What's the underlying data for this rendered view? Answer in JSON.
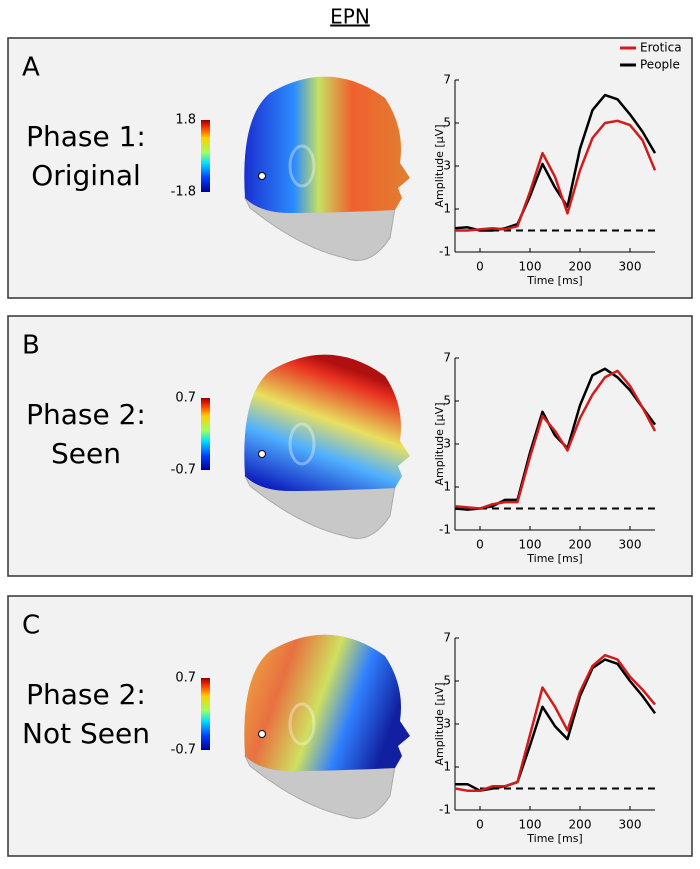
{
  "title": "EPN",
  "panels": [
    {
      "letter": "A",
      "label": [
        "Phase 1:",
        "Original"
      ],
      "colorbar": {
        "max": 1.8,
        "min": -1.8
      }
    },
    {
      "letter": "B",
      "label": [
        "Phase 2:",
        "Seen"
      ],
      "colorbar": {
        "max": 0.7,
        "min": -0.7
      }
    },
    {
      "letter": "C",
      "label": [
        "Phase 2:",
        "Not Seen"
      ],
      "colorbar": {
        "max": 0.7,
        "min": -0.7
      }
    }
  ],
  "chart_data": [
    {
      "type": "line",
      "xlabel": "Time [ms]",
      "ylabel": "Amplitude [µV]",
      "legend": "upper right",
      "x": [
        -50,
        -25,
        0,
        25,
        50,
        75,
        100,
        125,
        150,
        175,
        200,
        225,
        250,
        275,
        300,
        325,
        350
      ],
      "xlim": [
        -50,
        350
      ],
      "xticks": [
        0,
        100,
        200,
        300
      ],
      "ylim": [
        -1,
        7
      ],
      "yticks": [
        -1,
        1,
        3,
        5,
        7
      ],
      "hline": 0,
      "series": [
        {
          "name": "Erotica",
          "color": "#d01c1c",
          "values": [
            0,
            0,
            0.05,
            0.1,
            0.05,
            0.2,
            1.8,
            3.6,
            2.5,
            0.8,
            2.8,
            4.3,
            5.0,
            5.1,
            4.9,
            4.2,
            2.8
          ]
        },
        {
          "name": "People",
          "color": "#000000",
          "values": [
            0.1,
            0.15,
            0,
            0,
            0.1,
            0.3,
            1.6,
            3.1,
            2.0,
            1.1,
            3.8,
            5.6,
            6.3,
            6.1,
            5.4,
            4.6,
            3.6
          ]
        }
      ]
    },
    {
      "type": "line",
      "xlabel": "Time [ms]",
      "ylabel": "Amplitude [µV]",
      "x": [
        -50,
        -25,
        0,
        25,
        50,
        75,
        100,
        125,
        150,
        175,
        200,
        225,
        250,
        275,
        300,
        325,
        350
      ],
      "xlim": [
        -50,
        350
      ],
      "xticks": [
        0,
        100,
        200,
        300
      ],
      "ylim": [
        -1,
        7
      ],
      "yticks": [
        -1,
        1,
        3,
        5,
        7
      ],
      "hline": 0,
      "series": [
        {
          "name": "Erotica",
          "color": "#d01c1c",
          "values": [
            0.1,
            0.05,
            0,
            0.2,
            0.3,
            0.3,
            2.4,
            4.3,
            3.6,
            2.7,
            4.2,
            5.3,
            6.1,
            6.4,
            5.7,
            4.7,
            3.6
          ]
        },
        {
          "name": "People",
          "color": "#000000",
          "values": [
            0,
            -0.05,
            0,
            0.1,
            0.4,
            0.4,
            2.6,
            4.5,
            3.4,
            2.8,
            4.8,
            6.2,
            6.5,
            6.1,
            5.5,
            4.7,
            3.9
          ]
        }
      ]
    },
    {
      "type": "line",
      "xlabel": "Time [ms]",
      "ylabel": "Amplitude [µV]",
      "x": [
        -50,
        -25,
        0,
        25,
        50,
        75,
        100,
        125,
        150,
        175,
        200,
        225,
        250,
        275,
        300,
        325,
        350
      ],
      "xlim": [
        -50,
        350
      ],
      "xticks": [
        0,
        100,
        200,
        300
      ],
      "ylim": [
        -1,
        7
      ],
      "yticks": [
        -1,
        1,
        3,
        5,
        7
      ],
      "hline": 0,
      "series": [
        {
          "name": "Erotica",
          "color": "#d01c1c",
          "values": [
            0,
            -0.1,
            -0.1,
            0.1,
            0.1,
            0.3,
            2.5,
            4.7,
            3.8,
            2.7,
            4.5,
            5.7,
            6.2,
            6.0,
            5.2,
            4.6,
            3.9
          ]
        },
        {
          "name": "People",
          "color": "#000000",
          "values": [
            0.2,
            0.2,
            -0.1,
            0,
            0.1,
            0.3,
            2.0,
            3.8,
            2.9,
            2.3,
            4.3,
            5.6,
            6.0,
            5.8,
            5.0,
            4.3,
            3.5
          ]
        }
      ]
    }
  ]
}
